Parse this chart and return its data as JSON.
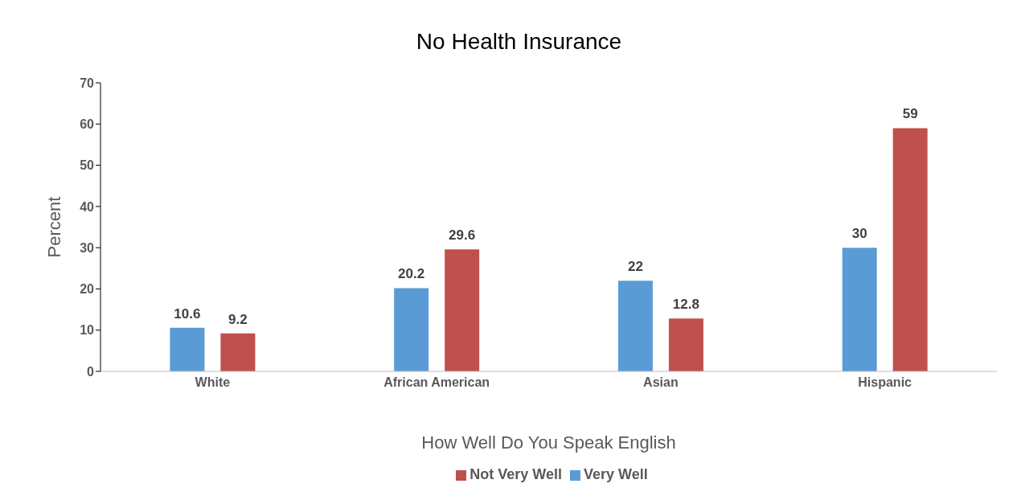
{
  "chart_data": {
    "type": "bar",
    "title": "No Health Insurance",
    "xlabel": "How Well Do You Speak English",
    "ylabel": "Percent",
    "categories": [
      "White",
      "African American",
      "Asian",
      "Hispanic"
    ],
    "series": [
      {
        "name": "Very Well",
        "color": "#5b9bd5",
        "values": [
          10.6,
          20.2,
          22,
          30
        ]
      },
      {
        "name": "Not Very Well",
        "color": "#c0504d",
        "values": [
          9.2,
          29.6,
          12.8,
          59
        ]
      }
    ],
    "ylim": [
      0,
      70
    ],
    "yticks": [
      0,
      10,
      20,
      30,
      40,
      50,
      60,
      70
    ],
    "grid": false,
    "legend": "bottom",
    "data_labels": true
  }
}
